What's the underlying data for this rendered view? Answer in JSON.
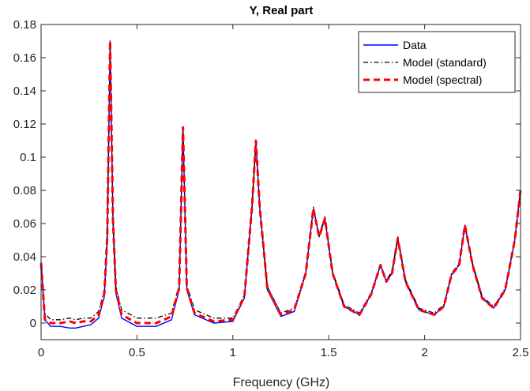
{
  "chart_data": {
    "type": "line",
    "title": "Y, Real part",
    "xlabel": "Frequency (GHz)",
    "ylabel": "",
    "xlim": [
      0,
      2.5
    ],
    "ylim": [
      -0.01,
      0.18
    ],
    "x_ticks": [
      "0",
      "0.5",
      "1",
      "1.5",
      "2",
      "2.5"
    ],
    "y_ticks": [
      "0",
      "0.02",
      "0.04",
      "0.06",
      "0.08",
      "0.1",
      "0.12",
      "0.14",
      "0.16",
      "0.18"
    ],
    "grid": false,
    "legend_position": "top-right",
    "series": [
      {
        "name": "Data",
        "color": "#0000ff",
        "style": "solid",
        "x": [
          0.0,
          0.02,
          0.05,
          0.1,
          0.15,
          0.18,
          0.22,
          0.26,
          0.3,
          0.33,
          0.345,
          0.36,
          0.375,
          0.39,
          0.42,
          0.5,
          0.6,
          0.68,
          0.72,
          0.74,
          0.76,
          0.8,
          0.9,
          1.0,
          1.06,
          1.1,
          1.12,
          1.14,
          1.18,
          1.25,
          1.32,
          1.38,
          1.42,
          1.45,
          1.48,
          1.52,
          1.58,
          1.66,
          1.72,
          1.77,
          1.8,
          1.83,
          1.86,
          1.9,
          1.97,
          2.05,
          2.1,
          2.14,
          2.18,
          2.21,
          2.25,
          2.3,
          2.36,
          2.42,
          2.47,
          2.5
        ],
        "y": [
          0.037,
          0.002,
          -0.002,
          -0.002,
          -0.003,
          -0.003,
          -0.002,
          -0.001,
          0.003,
          0.016,
          0.05,
          0.17,
          0.06,
          0.018,
          0.003,
          -0.002,
          -0.002,
          0.002,
          0.02,
          0.118,
          0.02,
          0.005,
          0.0,
          0.001,
          0.015,
          0.07,
          0.11,
          0.07,
          0.02,
          0.004,
          0.007,
          0.03,
          0.069,
          0.052,
          0.063,
          0.03,
          0.01,
          0.005,
          0.017,
          0.035,
          0.025,
          0.03,
          0.051,
          0.025,
          0.008,
          0.005,
          0.01,
          0.029,
          0.035,
          0.059,
          0.035,
          0.015,
          0.009,
          0.02,
          0.05,
          0.08
        ]
      },
      {
        "name": "Model (standard)",
        "color": "#000000",
        "style": "dashdot",
        "x": [
          0.0,
          0.02,
          0.05,
          0.1,
          0.15,
          0.18,
          0.22,
          0.26,
          0.3,
          0.33,
          0.345,
          0.36,
          0.375,
          0.39,
          0.42,
          0.5,
          0.6,
          0.68,
          0.72,
          0.74,
          0.76,
          0.8,
          0.9,
          1.0,
          1.06,
          1.1,
          1.12,
          1.14,
          1.18,
          1.25,
          1.32,
          1.38,
          1.42,
          1.45,
          1.48,
          1.52,
          1.58,
          1.66,
          1.72,
          1.77,
          1.8,
          1.83,
          1.86,
          1.9,
          1.97,
          2.05,
          2.1,
          2.14,
          2.18,
          2.21,
          2.25,
          2.3,
          2.36,
          2.42,
          2.47,
          2.5
        ],
        "y": [
          0.036,
          0.006,
          0.002,
          0.002,
          0.003,
          0.002,
          0.003,
          0.003,
          0.007,
          0.02,
          0.055,
          0.168,
          0.065,
          0.022,
          0.008,
          0.003,
          0.003,
          0.006,
          0.023,
          0.117,
          0.023,
          0.008,
          0.003,
          0.003,
          0.017,
          0.071,
          0.109,
          0.071,
          0.022,
          0.006,
          0.009,
          0.031,
          0.07,
          0.053,
          0.064,
          0.031,
          0.011,
          0.006,
          0.018,
          0.035,
          0.026,
          0.031,
          0.052,
          0.026,
          0.009,
          0.006,
          0.011,
          0.03,
          0.036,
          0.059,
          0.036,
          0.016,
          0.01,
          0.021,
          0.05,
          0.08
        ]
      },
      {
        "name": "Model (spectral)",
        "color": "#ff0000",
        "style": "dashed",
        "x": [
          0.0,
          0.02,
          0.05,
          0.1,
          0.15,
          0.18,
          0.22,
          0.26,
          0.3,
          0.33,
          0.345,
          0.36,
          0.375,
          0.39,
          0.42,
          0.5,
          0.6,
          0.68,
          0.72,
          0.74,
          0.76,
          0.8,
          0.9,
          1.0,
          1.06,
          1.1,
          1.12,
          1.14,
          1.18,
          1.25,
          1.32,
          1.38,
          1.42,
          1.45,
          1.48,
          1.52,
          1.58,
          1.66,
          1.72,
          1.77,
          1.8,
          1.83,
          1.86,
          1.9,
          1.97,
          2.05,
          2.1,
          2.14,
          2.18,
          2.21,
          2.25,
          2.3,
          2.36,
          2.42,
          2.47,
          2.5
        ],
        "y": [
          0.036,
          0.002,
          0.0,
          0.0,
          0.001,
          0.0,
          0.001,
          0.001,
          0.005,
          0.018,
          0.052,
          0.17,
          0.062,
          0.02,
          0.005,
          0.0,
          0.0,
          0.004,
          0.021,
          0.118,
          0.021,
          0.006,
          0.001,
          0.002,
          0.016,
          0.07,
          0.11,
          0.07,
          0.021,
          0.005,
          0.008,
          0.03,
          0.069,
          0.052,
          0.063,
          0.03,
          0.01,
          0.005,
          0.017,
          0.035,
          0.025,
          0.03,
          0.051,
          0.025,
          0.008,
          0.005,
          0.01,
          0.029,
          0.035,
          0.059,
          0.035,
          0.015,
          0.009,
          0.02,
          0.05,
          0.08
        ]
      }
    ]
  }
}
